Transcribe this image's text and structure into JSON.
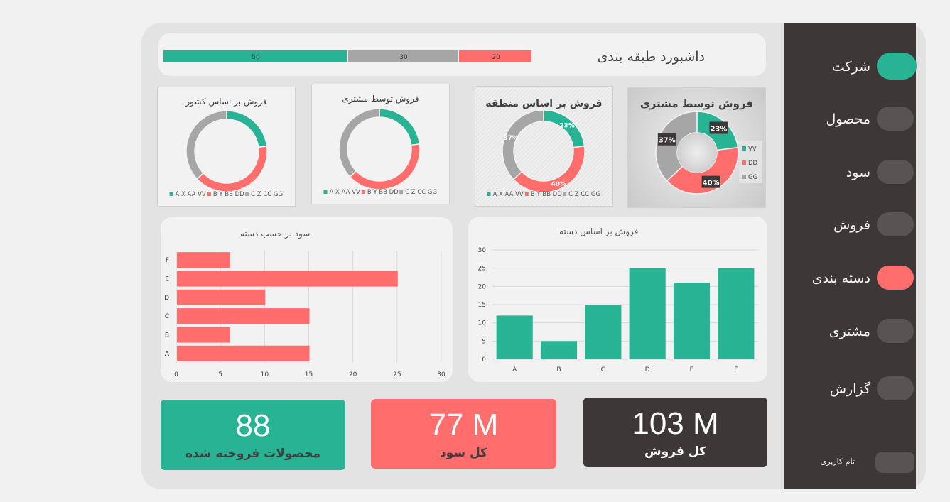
{
  "colors": {
    "teal": "#27b394",
    "coral": "#ff6e6c",
    "gray": "#a6a6a6",
    "dark": "#3d3837"
  },
  "sidebar": {
    "items": [
      {
        "label": "شرکت",
        "state": "active-teal"
      },
      {
        "label": "محصول",
        "state": "default"
      },
      {
        "label": "سود",
        "state": "default"
      },
      {
        "label": "فروش",
        "state": "default"
      },
      {
        "label": "دسته بندی",
        "state": "active-coral"
      },
      {
        "label": "مشتری",
        "state": "default"
      },
      {
        "label": "گزارش",
        "state": "default"
      }
    ],
    "fullscreen_label": "تام کاربری"
  },
  "header": {
    "title": "داشبورد طبقه بندی",
    "progress": [
      {
        "label": "50",
        "value": 50,
        "color": "#27b394"
      },
      {
        "label": "30",
        "value": 30,
        "color": "#a6a6a6"
      },
      {
        "label": "20",
        "value": 20,
        "color": "#ff6e6c"
      }
    ]
  },
  "donuts": [
    {
      "title": "فروش بر اساس کشور",
      "legend": [
        "A X AA VV",
        "B Y BB DD",
        "C Z CC GG"
      ]
    },
    {
      "title": "فروش توسط مشتری",
      "legend": [
        "A X AA VV",
        "B Y BB DD",
        "C Z CC GG"
      ]
    },
    {
      "title": "فروش بر اساس منطقه",
      "legend": [
        "A X AA VV",
        "B Y BB DD",
        "C Z CC GG"
      ],
      "labels": [
        "23%",
        "40%",
        "37%"
      ]
    },
    {
      "title": "فروش توسط مشتری",
      "legend": [
        "VV",
        "DD",
        "GG"
      ],
      "labels": [
        "23%",
        "40%",
        "37%"
      ]
    }
  ],
  "bar_h_title": "سود بر حسب دسته",
  "bar_v_title": "فروش بر اساس دسته",
  "kpis": [
    {
      "value": "88",
      "label": "محصولات فروخته شده"
    },
    {
      "value": "77 M",
      "label": "کل سود"
    },
    {
      "value": "103 M",
      "label": "کل فروش"
    }
  ],
  "chart_data": [
    {
      "type": "pie",
      "title": "فروش بر اساس کشور",
      "categories": [
        "A X AA VV",
        "B Y BB DD",
        "C Z CC GG"
      ],
      "values": [
        23,
        40,
        37
      ]
    },
    {
      "type": "pie",
      "title": "فروش توسط مشتری",
      "categories": [
        "A X AA VV",
        "B Y BB DD",
        "C Z CC GG"
      ],
      "values": [
        23,
        40,
        37
      ]
    },
    {
      "type": "pie",
      "title": "فروش بر اساس منطقه",
      "categories": [
        "A X AA VV",
        "B Y BB DD",
        "C Z CC GG"
      ],
      "values": [
        23,
        40,
        37
      ]
    },
    {
      "type": "pie",
      "title": "فروش توسط مشتری",
      "categories": [
        "VV",
        "DD",
        "GG"
      ],
      "values": [
        23,
        40,
        37
      ]
    },
    {
      "type": "bar",
      "orientation": "horizontal",
      "title": "سود بر حسب دسته",
      "categories": [
        "A",
        "B",
        "C",
        "D",
        "E",
        "F"
      ],
      "values": [
        15,
        6,
        15,
        10,
        25,
        6
      ],
      "xlim": [
        0,
        30
      ],
      "ticks": [
        "0",
        "5",
        "10",
        "15",
        "20",
        "25",
        "30"
      ],
      "grid": true
    },
    {
      "type": "bar",
      "orientation": "vertical",
      "title": "فروش بر اساس دسته",
      "categories": [
        "A",
        "B",
        "C",
        "D",
        "E",
        "F"
      ],
      "values": [
        12,
        5,
        15,
        25,
        21,
        25
      ],
      "ylim": [
        0,
        30
      ],
      "ticks": [
        "0",
        "5",
        "10",
        "15",
        "20",
        "25",
        "30"
      ],
      "grid": true
    }
  ]
}
